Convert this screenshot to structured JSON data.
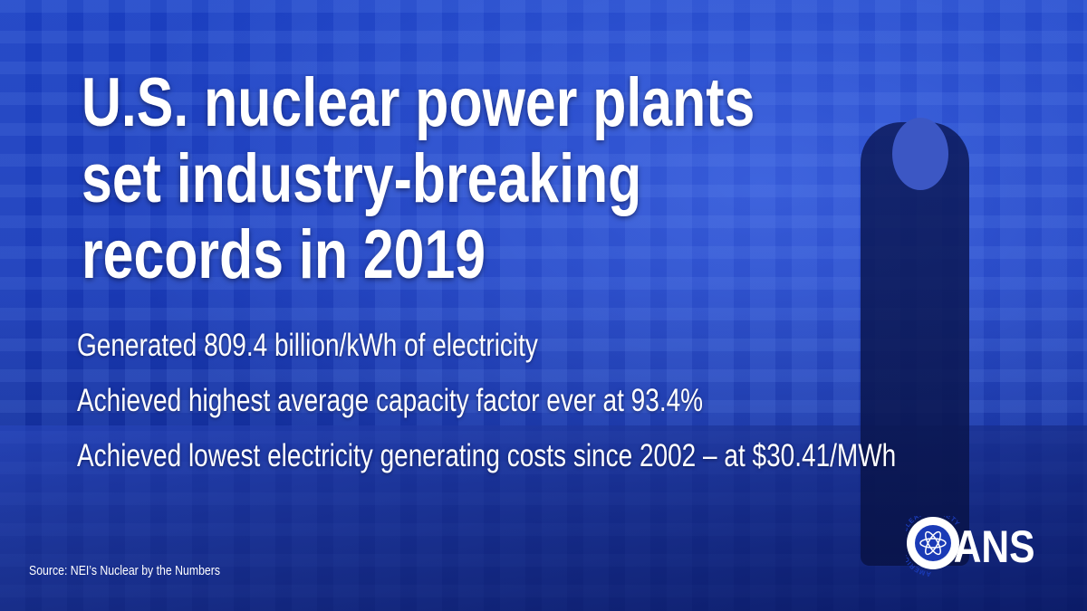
{
  "header": {
    "title_lines": [
      "U.S. nuclear power plants",
      "set industry-breaking",
      "records in 2019"
    ]
  },
  "bullets": [
    "Generated 809.4 billion/kWh of electricity",
    "Achieved highest average capacity factor ever at 93.4%",
    "Achieved lowest electricity generating costs since 2002 – at $30.41/MWh"
  ],
  "source": "Source: NEI’s Nuclear by the Numbers",
  "logo": {
    "ring_text": "AMERICAN NUCLEAR SOCIETY",
    "text": "ANS"
  }
}
